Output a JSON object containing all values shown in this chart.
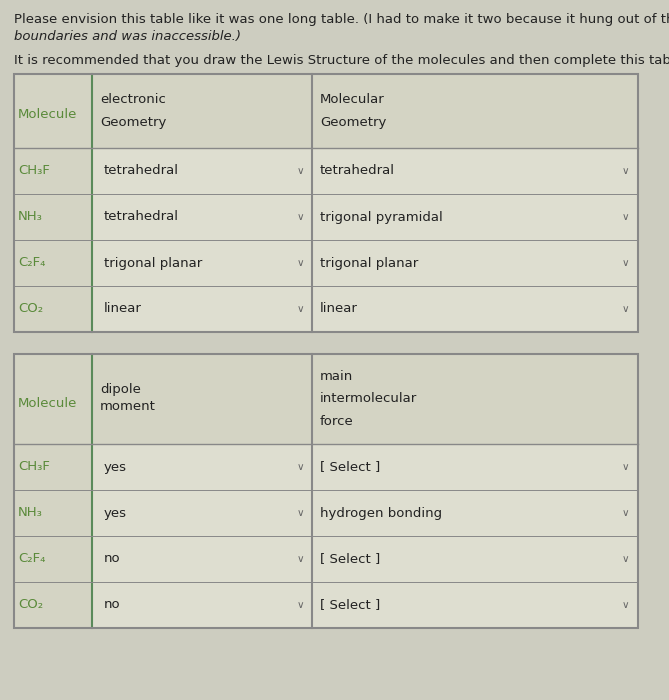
{
  "intro_line1": "Please envision this table like it was one long table. (I had to make it two because it hung out of the quiz",
  "intro_line2": "boundaries and was inaccessible.)",
  "rec_line": "It is recommended that you draw the Lewis Structure of the molecules and then complete this table.",
  "page_bg": "#cdcdc0",
  "table_bg": "#d4d4c4",
  "cell_bg": "#deded0",
  "border_dark": "#888888",
  "border_green": "#5a8a5a",
  "mol_color": "#5a8a3a",
  "text_color": "#222222",
  "table1": {
    "header_col0": "Molecule",
    "header_col1_line1": "electronic",
    "header_col1_line2": "Geometry",
    "header_col3_line1": "Molecular",
    "header_col3_line2": "Geometry",
    "rows": [
      [
        "CH₃F",
        "tetrahedral",
        "tetrahedral"
      ],
      [
        "NH₃",
        "tetrahedral",
        "trigonal pyramidal"
      ],
      [
        "C₂F₄",
        "trigonal planar",
        "trigonal planar"
      ],
      [
        "CO₂",
        "linear",
        "linear"
      ]
    ]
  },
  "table2": {
    "header_col0": "Molecule",
    "header_col1_line1": "dipole",
    "header_col1_line2": "moment",
    "header_col3_line1": "main",
    "header_col3_line2": "intermolecular",
    "header_col3_line3": "force",
    "rows": [
      [
        "CH₃F",
        "yes",
        "[ Select ]"
      ],
      [
        "NH₃",
        "yes",
        "hydrogen bonding"
      ],
      [
        "C₂F₄",
        "no",
        "[ Select ]"
      ],
      [
        "CO₂",
        "no",
        "[ Select ]"
      ]
    ]
  },
  "font_intro": 9.5,
  "font_cell": 9.5,
  "font_mol": 9.5,
  "font_arrow": 7.5
}
